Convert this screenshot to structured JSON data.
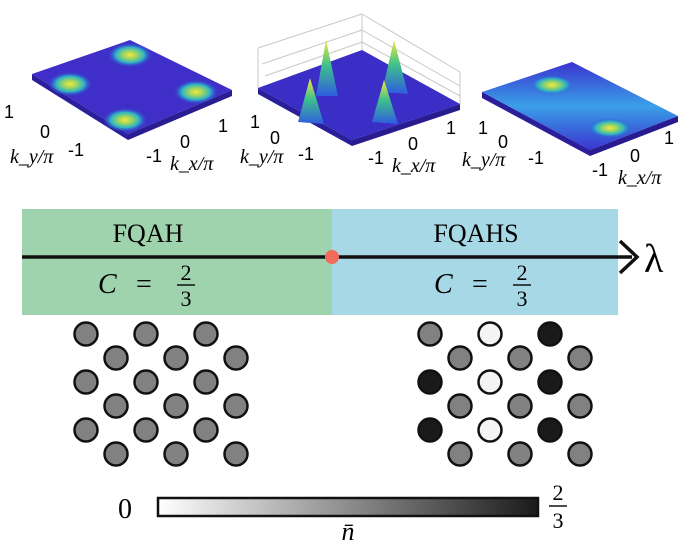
{
  "surface_plots": [
    {
      "name": "fqah-density-plot",
      "ky_ticks": [
        "1",
        "0",
        "-1"
      ],
      "kx_ticks": [
        "-1",
        "0",
        "1"
      ],
      "ky_label": "k_y/π",
      "kx_label": "k_x/π"
    },
    {
      "name": "transition-density-plot",
      "ky_ticks": [
        "1",
        "0",
        "-1"
      ],
      "kx_ticks": [
        "-1",
        "0",
        "1"
      ],
      "ky_label": "k_y/π",
      "kx_label": "k_x/π"
    },
    {
      "name": "fqahs-density-plot",
      "ky_ticks": [
        "1",
        "0",
        "-1"
      ],
      "kx_ticks": [
        "-1",
        "0",
        "1"
      ],
      "ky_label": "k_y/π",
      "kx_label": "k_x/π"
    }
  ],
  "phase_diagram": {
    "axis_label": "λ",
    "left_phase": {
      "name": "FQAH",
      "chern_symbol": "C",
      "equals": "=",
      "numerator": "2",
      "denominator": "3",
      "color": "#9fd3ad"
    },
    "right_phase": {
      "name": "FQAHS",
      "chern_symbol": "C",
      "equals": "=",
      "numerator": "2",
      "denominator": "3",
      "color": "#a7d8e5"
    },
    "critical_point_color": "#f26b5b"
  },
  "lattices": {
    "left": {
      "pattern": "uniform",
      "rows": 6,
      "per_row": 3,
      "fill_level": 0.55
    },
    "right": {
      "pattern": "charge-density-wave",
      "rows": 6,
      "per_row": 3,
      "fill_levels": [
        [
          0.55,
          0.05,
          1.0
        ],
        [
          0.55,
          0.55,
          0.55
        ],
        [
          1.0,
          0.05,
          1.0
        ],
        [
          0.55,
          0.55,
          0.55
        ],
        [
          1.0,
          0.05,
          1.0
        ],
        [
          0.55,
          0.55,
          0.55
        ]
      ]
    }
  },
  "colorbar": {
    "min_label": "0",
    "max_numerator": "2",
    "max_denominator": "3",
    "label": "n̄",
    "gradient_start": "#ffffff",
    "gradient_end": "#1a1a1a"
  }
}
